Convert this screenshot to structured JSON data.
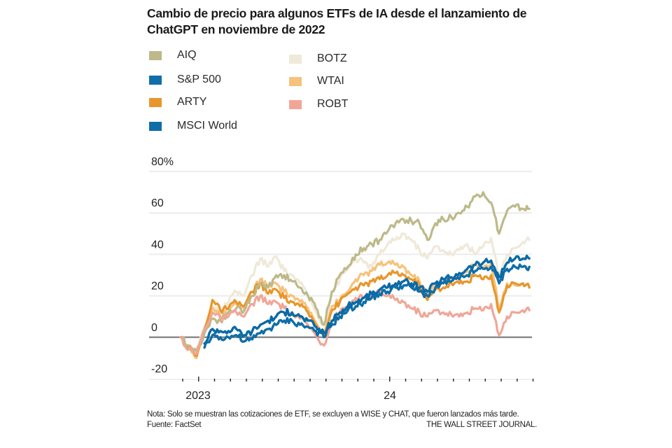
{
  "chart_data": {
    "type": "line",
    "title": "Cambio de precio para algunos ETFs de IA desde el lanzamiento de ChatGPT en noviembre de 2022",
    "xlabel": "",
    "ylabel": "",
    "y_unit": "%",
    "ylim": [
      -20,
      80
    ],
    "yticks": [
      -20,
      0,
      20,
      40,
      60,
      80
    ],
    "ytick_labels": [
      "-20",
      "0",
      "20",
      "40",
      "60",
      "80%"
    ],
    "xtick_labels": [
      "2023",
      "24"
    ],
    "xlim_months_from_2022_12_01": [
      -0.1,
      21.9
    ],
    "grid": true,
    "legend_position": "top-left",
    "x_months": [
      0,
      0.5,
      1,
      1.5,
      2,
      2.5,
      3,
      3.5,
      4,
      4.5,
      5,
      5.5,
      6,
      6.5,
      7,
      7.5,
      8,
      8.5,
      9,
      9.5,
      10,
      10.5,
      11,
      11.5,
      12,
      12.5,
      13,
      13.5,
      14,
      14.5,
      15,
      15.5,
      16,
      16.5,
      17,
      17.5,
      18,
      18.5,
      19,
      19.5,
      20,
      20.5,
      21,
      21.5,
      21.9
    ],
    "series": [
      {
        "name": "BOTZ",
        "color": "#efe9d8",
        "values": [
          0,
          -5,
          -6,
          5,
          15,
          12,
          17,
          22,
          20,
          30,
          38,
          34,
          39,
          32,
          30,
          26,
          20,
          12,
          6,
          22,
          28,
          33,
          38,
          36,
          34,
          40,
          45,
          47,
          50,
          47,
          42,
          38,
          44,
          42,
          40,
          42,
          45,
          40,
          44,
          48,
          30,
          40,
          43,
          46,
          47
        ]
      },
      {
        "name": "WTAI",
        "color": "#f6c27c",
        "values": [
          0,
          -6,
          -10,
          3,
          14,
          10,
          12,
          16,
          14,
          22,
          28,
          24,
          26,
          22,
          20,
          17,
          14,
          7,
          3,
          15,
          18,
          22,
          28,
          30,
          32,
          35,
          36,
          35,
          34,
          30,
          27,
          20,
          26,
          27,
          28,
          29,
          32,
          35,
          33,
          36,
          14,
          26,
          25,
          26,
          24
        ]
      },
      {
        "name": "ARTY",
        "color": "#e8962b",
        "values": [
          0,
          -5,
          -9,
          4,
          18,
          13,
          14,
          17,
          15,
          22,
          26,
          21,
          23,
          19,
          17,
          15,
          12,
          6,
          2,
          13,
          17,
          21,
          24,
          25,
          27,
          28,
          30,
          31,
          30,
          28,
          25,
          18,
          23,
          24,
          26,
          26,
          27,
          30,
          28,
          30,
          12,
          25,
          26,
          26,
          24
        ]
      },
      {
        "name": "AIQ",
        "color": "#bdb989",
        "values": [
          0,
          -4,
          -7,
          2,
          9,
          8,
          12,
          14,
          13,
          20,
          26,
          24,
          30,
          30,
          27,
          24,
          20,
          14,
          6,
          22,
          30,
          34,
          40,
          43,
          45,
          47,
          51,
          55,
          57,
          56,
          55,
          47,
          55,
          57,
          58,
          60,
          63,
          68,
          70,
          65,
          50,
          61,
          63,
          62,
          62
        ]
      },
      {
        "name": "ROBT",
        "color": "#f0a697",
        "values": [
          0,
          -6,
          -8,
          4,
          12,
          9,
          10,
          12,
          10,
          16,
          20,
          16,
          17,
          14,
          11,
          9,
          6,
          1,
          -4,
          8,
          12,
          15,
          19,
          19,
          20,
          22,
          20,
          18,
          17,
          14,
          12,
          10,
          13,
          12,
          11,
          10,
          12,
          14,
          13,
          16,
          1,
          10,
          12,
          13,
          13
        ]
      },
      {
        "name": "MSCI World",
        "color": "#0f6ea8",
        "values": [
          null,
          null,
          null,
          -5,
          1,
          0,
          0,
          1,
          -2,
          -1,
          2,
          4,
          6,
          8,
          8,
          6,
          5,
          3,
          0,
          6,
          10,
          13,
          15,
          17,
          19,
          21,
          22,
          24,
          25,
          24,
          22,
          20,
          24,
          26,
          27,
          28,
          30,
          32,
          33,
          34,
          26,
          33,
          34,
          34,
          34
        ]
      },
      {
        "name": "S&P 500",
        "color": "#0a6aa6",
        "values": [
          null,
          null,
          null,
          -3,
          4,
          3,
          3,
          4,
          1,
          3,
          6,
          8,
          10,
          12,
          12,
          10,
          8,
          5,
          2,
          8,
          12,
          15,
          17,
          19,
          21,
          23,
          24,
          26,
          27,
          26,
          24,
          22,
          26,
          28,
          29,
          31,
          33,
          35,
          36,
          37,
          29,
          36,
          38,
          38,
          38
        ]
      }
    ]
  },
  "title": "Cambio de precio para algunos ETFs de IA desde el lanzamiento de ChatGPT en noviembre de 2022",
  "legend": [
    {
      "label": "AIQ",
      "color": "#bdb989"
    },
    {
      "label": "S&P 500",
      "color": "#0f6ea8"
    },
    {
      "label": "ARTY",
      "color": "#e8962b"
    },
    {
      "label": "MSCI World",
      "color": "#0f6ea8"
    },
    {
      "label": "BOTZ",
      "color": "#efe9d8"
    },
    {
      "label": "WTAI",
      "color": "#f6c27c"
    },
    {
      "label": "ROBT",
      "color": "#f0a697"
    }
  ],
  "footer": {
    "note": "Nota: Solo se muestran las cotizaciones de ETF, se excluyen a WISE y CHAT, que fueron lanzados más tarde.",
    "source": "Fuente: FactSet",
    "credit": "THE WALL STREET JOURNAL."
  }
}
